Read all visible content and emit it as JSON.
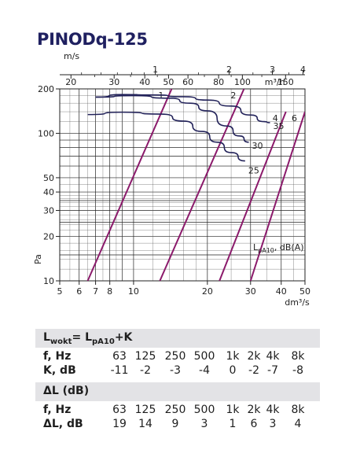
{
  "title": "PINODq-125",
  "chart_data": {
    "type": "line",
    "x_axis": {
      "label": "dm³/s",
      "scale": "log",
      "range": [
        5,
        50
      ],
      "ticks": [
        5,
        6,
        7,
        8,
        10,
        20,
        30,
        40,
        50
      ]
    },
    "y_axis": {
      "label": "Pa",
      "scale": "log",
      "range": [
        10,
        200
      ],
      "ticks": [
        10,
        20,
        30,
        40,
        50,
        100,
        200
      ]
    },
    "top_axis_ms": {
      "label": "m/s",
      "ticks": [
        1,
        2,
        3,
        4
      ]
    },
    "top_axis_m3h": {
      "label": "m³/h",
      "ticks": [
        20,
        30,
        40,
        50,
        60,
        80,
        100,
        150
      ]
    },
    "annotation": "LpA10, dB(A)",
    "system_curves": [
      {
        "name": "1",
        "points": [
          [
            6.5,
            10
          ],
          [
            14.3,
            200
          ]
        ]
      },
      {
        "name": "2",
        "points": [
          [
            12.8,
            10
          ],
          [
            28.2,
            200
          ]
        ]
      },
      {
        "name": "4",
        "points": [
          [
            22.4,
            10
          ],
          [
            41.8,
            140
          ]
        ]
      },
      {
        "name": "6",
        "points": [
          [
            30,
            10
          ],
          [
            50,
            140
          ]
        ]
      }
    ],
    "fan_curves": [
      {
        "name": "35",
        "points": [
          [
            7,
            176
          ],
          [
            9,
            183
          ],
          [
            12,
            182
          ],
          [
            16,
            177
          ],
          [
            20,
            168
          ],
          [
            25,
            153
          ],
          [
            30,
            133
          ],
          [
            34,
            120
          ],
          [
            36,
            118
          ]
        ]
      },
      {
        "name": "30",
        "points": [
          [
            7,
            176
          ],
          [
            10,
            180
          ],
          [
            14,
            173
          ],
          [
            17,
            160
          ],
          [
            20,
            142
          ],
          [
            24,
            112
          ],
          [
            27,
            96
          ],
          [
            29.5,
            87
          ]
        ]
      },
      {
        "name": "25",
        "points": [
          [
            6.5,
            134
          ],
          [
            9,
            139
          ],
          [
            13,
            135
          ],
          [
            16,
            121
          ],
          [
            19,
            103
          ],
          [
            22,
            87
          ],
          [
            25,
            74
          ],
          [
            28.5,
            65
          ]
        ]
      }
    ]
  },
  "table1": {
    "header": {
      "main": "L",
      "sub1": "wokt",
      "mid": "= L",
      "sub2": "pA10",
      "tail": "+K"
    },
    "rows": [
      {
        "label": "f, Hz",
        "values": [
          "63",
          "125",
          "250",
          "500",
          "1k",
          "2k",
          "4k",
          "8k"
        ]
      },
      {
        "label": "K, dB",
        "values": [
          "-11",
          "-2",
          "-3",
          "-4",
          "0",
          "-2",
          "-7",
          "-8"
        ]
      }
    ]
  },
  "table2": {
    "header": "ΔL (dB)",
    "rows": [
      {
        "label": "f, Hz",
        "values": [
          "63",
          "125",
          "250",
          "500",
          "1k",
          "2k",
          "4k",
          "8k"
        ]
      },
      {
        "label": "ΔL, dB",
        "values": [
          "19",
          "14",
          "9",
          "3",
          "1",
          "6",
          "3",
          "4"
        ]
      }
    ]
  }
}
